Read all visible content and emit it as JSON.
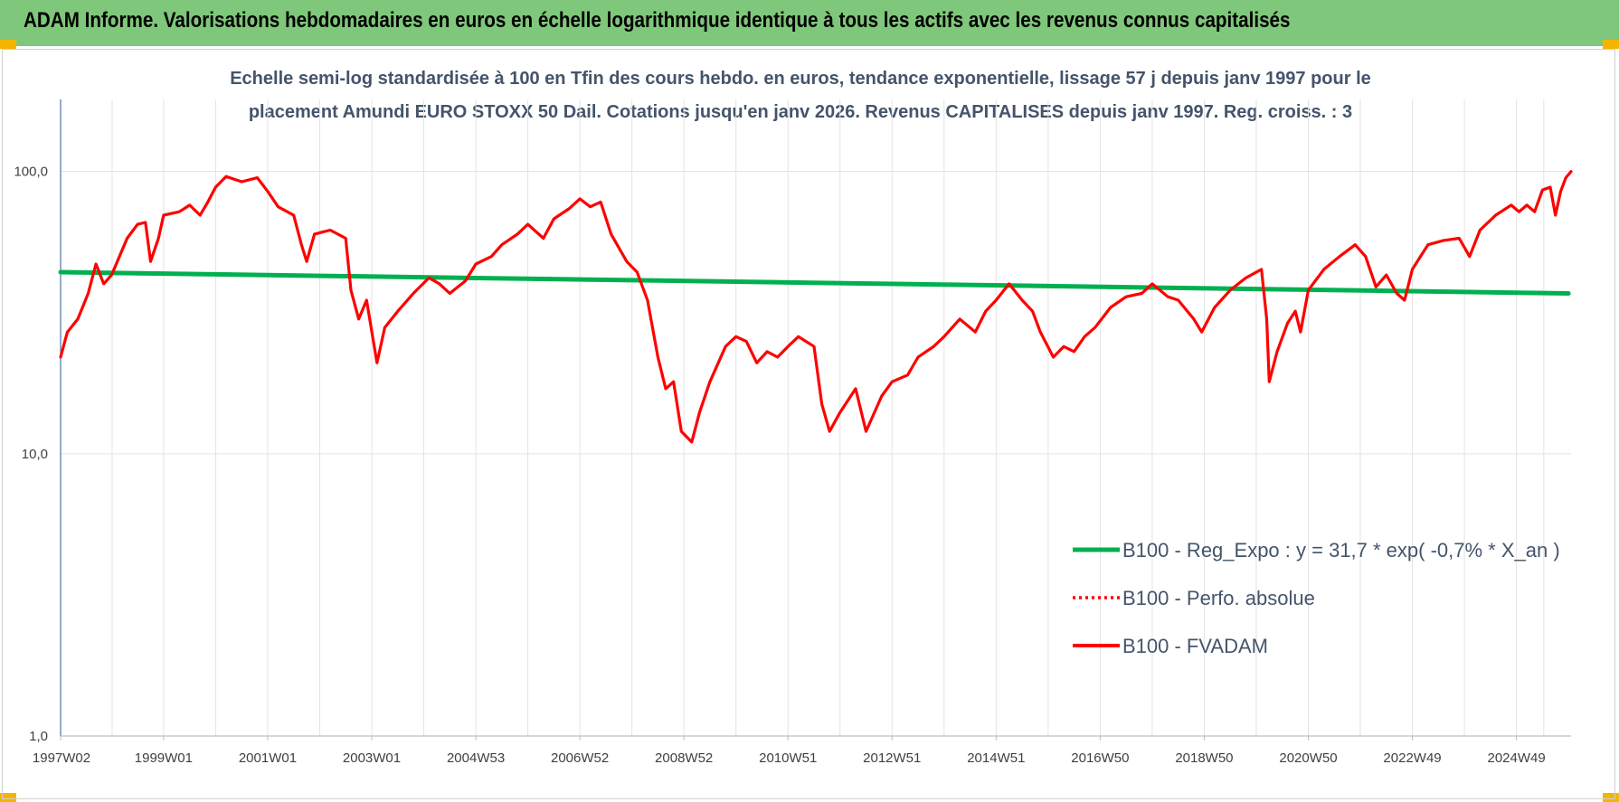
{
  "banner": {
    "title": "ADAM Informe. Valorisations hebdomadaires en euros en échelle logarithmique identique à tous les actifs avec les revenus connus capitalisés"
  },
  "chart_data": {
    "type": "line",
    "title_line1": "Echelle semi-log standardisée à 100 en Tfin des cours hebdo. en euros, tendance exponentielle, lissage 57 j depuis janv 1997 pour le",
    "title_line2": "placement Amundi EURO STOXX 50 Dail. Cotations jusqu'en janv 2026. Revenus CAPITALISES depuis janv 1997. Reg. croiss. : 3",
    "y_scale": "log",
    "ylim": [
      1,
      180
    ],
    "y_ticks": [
      {
        "value": 1,
        "label": "1,0"
      },
      {
        "value": 10,
        "label": "10,0"
      },
      {
        "value": 100,
        "label": "100,0"
      }
    ],
    "xlim": [
      1997.02,
      2026.05
    ],
    "x_ticks": [
      {
        "value": 1997.02,
        "label": "1997W02"
      },
      {
        "value": 1999.0,
        "label": "1999W01"
      },
      {
        "value": 2001.0,
        "label": "2001W01"
      },
      {
        "value": 2003.0,
        "label": "2003W01"
      },
      {
        "value": 2005.0,
        "label": "2004W53"
      },
      {
        "value": 2007.0,
        "label": "2006W52"
      },
      {
        "value": 2009.0,
        "label": "2008W52"
      },
      {
        "value": 2011.0,
        "label": "2010W51"
      },
      {
        "value": 2013.0,
        "label": "2012W51"
      },
      {
        "value": 2015.0,
        "label": "2014W51"
      },
      {
        "value": 2017.0,
        "label": "2016W50"
      },
      {
        "value": 2019.0,
        "label": "2018W50"
      },
      {
        "value": 2021.0,
        "label": "2020W50"
      },
      {
        "value": 2023.0,
        "label": "2022W49"
      },
      {
        "value": 2025.0,
        "label": "2024W49"
      }
    ],
    "grid": true,
    "legend_position": "bottom-right",
    "series": [
      {
        "name": "B100 - Reg_Expo : y = 31,7 * exp( -0,7% *  X_an )",
        "color": "#00b050",
        "style": "solid",
        "points": [
          [
            1997.02,
            44.0
          ],
          [
            2026.0,
            37.0
          ]
        ]
      },
      {
        "name": "B100 - Perfo. absolue",
        "color": "#ff0000",
        "style": "dotted",
        "points": []
      },
      {
        "name": "B100 - FVADAM",
        "color": "#ff0000",
        "style": "solid",
        "points": [
          [
            1997.02,
            22.0
          ],
          [
            1997.15,
            27.0
          ],
          [
            1997.35,
            30.0
          ],
          [
            1997.55,
            37.0
          ],
          [
            1997.7,
            47.0
          ],
          [
            1997.85,
            40.0
          ],
          [
            1998.0,
            43.0
          ],
          [
            1998.3,
            58.0
          ],
          [
            1998.5,
            65.0
          ],
          [
            1998.65,
            66.0
          ],
          [
            1998.75,
            48.0
          ],
          [
            1998.9,
            58.0
          ],
          [
            1999.0,
            70.0
          ],
          [
            1999.3,
            72.0
          ],
          [
            1999.5,
            76.0
          ],
          [
            1999.7,
            70.0
          ],
          [
            1999.85,
            78.0
          ],
          [
            2000.0,
            88.0
          ],
          [
            2000.2,
            96.0
          ],
          [
            2000.5,
            92.0
          ],
          [
            2000.8,
            95.0
          ],
          [
            2001.0,
            85.0
          ],
          [
            2001.2,
            75.0
          ],
          [
            2001.5,
            70.0
          ],
          [
            2001.65,
            55.0
          ],
          [
            2001.75,
            48.0
          ],
          [
            2001.9,
            60.0
          ],
          [
            2002.2,
            62.0
          ],
          [
            2002.5,
            58.0
          ],
          [
            2002.6,
            38.0
          ],
          [
            2002.75,
            30.0
          ],
          [
            2002.9,
            35.0
          ],
          [
            2003.1,
            21.0
          ],
          [
            2003.25,
            28.0
          ],
          [
            2003.5,
            32.0
          ],
          [
            2003.8,
            37.0
          ],
          [
            2004.1,
            42.0
          ],
          [
            2004.3,
            40.0
          ],
          [
            2004.5,
            37.0
          ],
          [
            2004.8,
            41.0
          ],
          [
            2005.0,
            47.0
          ],
          [
            2005.3,
            50.0
          ],
          [
            2005.5,
            55.0
          ],
          [
            2005.8,
            60.0
          ],
          [
            2006.0,
            65.0
          ],
          [
            2006.3,
            58.0
          ],
          [
            2006.5,
            68.0
          ],
          [
            2006.8,
            74.0
          ],
          [
            2007.0,
            80.0
          ],
          [
            2007.2,
            75.0
          ],
          [
            2007.4,
            78.0
          ],
          [
            2007.6,
            60.0
          ],
          [
            2007.9,
            48.0
          ],
          [
            2008.1,
            44.0
          ],
          [
            2008.3,
            35.0
          ],
          [
            2008.5,
            22.0
          ],
          [
            2008.65,
            17.0
          ],
          [
            2008.8,
            18.0
          ],
          [
            2008.95,
            12.0
          ],
          [
            2009.15,
            11.0
          ],
          [
            2009.3,
            14.0
          ],
          [
            2009.5,
            18.0
          ],
          [
            2009.8,
            24.0
          ],
          [
            2010.0,
            26.0
          ],
          [
            2010.2,
            25.0
          ],
          [
            2010.4,
            21.0
          ],
          [
            2010.6,
            23.0
          ],
          [
            2010.8,
            22.0
          ],
          [
            2011.0,
            24.0
          ],
          [
            2011.2,
            26.0
          ],
          [
            2011.5,
            24.0
          ],
          [
            2011.65,
            15.0
          ],
          [
            2011.8,
            12.0
          ],
          [
            2012.0,
            14.0
          ],
          [
            2012.3,
            17.0
          ],
          [
            2012.5,
            12.0
          ],
          [
            2012.8,
            16.0
          ],
          [
            2013.0,
            18.0
          ],
          [
            2013.3,
            19.0
          ],
          [
            2013.5,
            22.0
          ],
          [
            2013.8,
            24.0
          ],
          [
            2014.0,
            26.0
          ],
          [
            2014.3,
            30.0
          ],
          [
            2014.6,
            27.0
          ],
          [
            2014.8,
            32.0
          ],
          [
            2015.0,
            35.0
          ],
          [
            2015.25,
            40.0
          ],
          [
            2015.5,
            35.0
          ],
          [
            2015.7,
            32.0
          ],
          [
            2015.85,
            27.0
          ],
          [
            2016.1,
            22.0
          ],
          [
            2016.3,
            24.0
          ],
          [
            2016.5,
            23.0
          ],
          [
            2016.7,
            26.0
          ],
          [
            2016.9,
            28.0
          ],
          [
            2017.2,
            33.0
          ],
          [
            2017.5,
            36.0
          ],
          [
            2017.8,
            37.0
          ],
          [
            2018.0,
            40.0
          ],
          [
            2018.3,
            36.0
          ],
          [
            2018.5,
            35.0
          ],
          [
            2018.8,
            30.0
          ],
          [
            2018.95,
            27.0
          ],
          [
            2019.2,
            33.0
          ],
          [
            2019.5,
            38.0
          ],
          [
            2019.8,
            42.0
          ],
          [
            2020.1,
            45.0
          ],
          [
            2020.2,
            30.0
          ],
          [
            2020.25,
            18.0
          ],
          [
            2020.4,
            23.0
          ],
          [
            2020.6,
            29.0
          ],
          [
            2020.75,
            32.0
          ],
          [
            2020.85,
            27.0
          ],
          [
            2021.0,
            38.0
          ],
          [
            2021.3,
            45.0
          ],
          [
            2021.6,
            50.0
          ],
          [
            2021.9,
            55.0
          ],
          [
            2022.1,
            50.0
          ],
          [
            2022.3,
            39.0
          ],
          [
            2022.5,
            43.0
          ],
          [
            2022.7,
            37.0
          ],
          [
            2022.85,
            35.0
          ],
          [
            2023.0,
            45.0
          ],
          [
            2023.3,
            55.0
          ],
          [
            2023.6,
            57.0
          ],
          [
            2023.9,
            58.0
          ],
          [
            2024.1,
            50.0
          ],
          [
            2024.3,
            62.0
          ],
          [
            2024.6,
            70.0
          ],
          [
            2024.9,
            76.0
          ],
          [
            2025.05,
            72.0
          ],
          [
            2025.2,
            76.0
          ],
          [
            2025.35,
            72.0
          ],
          [
            2025.5,
            86.0
          ],
          [
            2025.65,
            88.0
          ],
          [
            2025.75,
            70.0
          ],
          [
            2025.85,
            85.0
          ],
          [
            2025.95,
            95.0
          ],
          [
            2026.05,
            100.0
          ]
        ]
      }
    ]
  }
}
